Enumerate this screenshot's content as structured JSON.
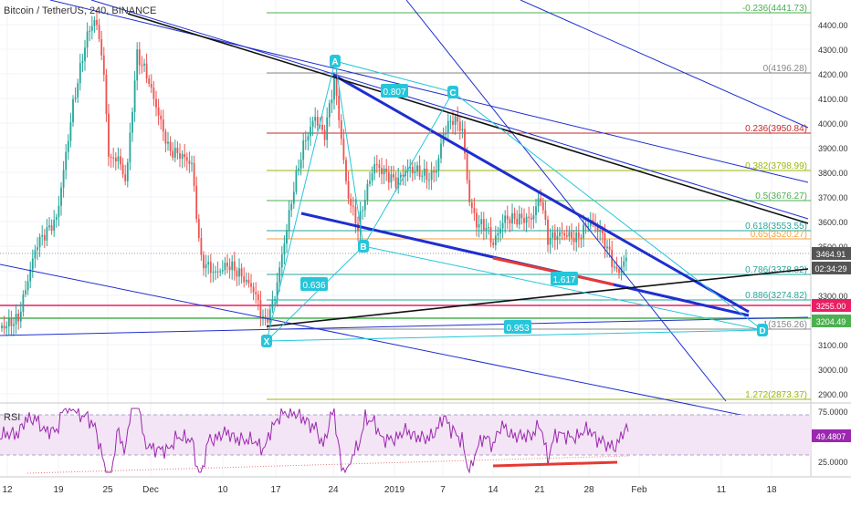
{
  "header": {
    "title": "Bitcoin / TetherUS, 240, BINANCE"
  },
  "rsi": {
    "label": "RSI",
    "value": "49.4807"
  },
  "colors": {
    "up": "#26a69a",
    "down": "#ef5350",
    "wick": "#888888",
    "fibGreen": "#4caf50",
    "fibRed": "#c62828",
    "fibOlive": "#9bb70a",
    "fibTeal": "#26a69a",
    "fibGray": "#888888",
    "fibOrange": "#f7a23b",
    "harmonic": "#26c6da",
    "trend": "#1f2ed0",
    "black": "#111111",
    "rsiLine": "#9c27b0",
    "rsiBand": "#f3e5f5",
    "pink": "#e91e63"
  },
  "chart_data": {
    "type": "candlestick",
    "symbol": "Bitcoin / TetherUS",
    "interval": "240",
    "exchange": "BINANCE",
    "y_ticks": [
      "4400.00",
      "4300.00",
      "4200.00",
      "4100.00",
      "4000.00",
      "3900.00",
      "3800.00",
      "3700.00",
      "3600.00",
      "3500.00",
      "3400.00",
      "3300.00",
      "3200.00",
      "3100.00",
      "3000.00",
      "2900.00"
    ],
    "x_ticks": [
      "12",
      "19",
      "25",
      "Dec",
      "10",
      "17",
      "24",
      "2019",
      "7",
      "14",
      "21",
      "28",
      "Feb",
      "11",
      "18"
    ],
    "price_badges": [
      {
        "label": "3464.91",
        "color": "#555555"
      },
      {
        "label": "02:34:29",
        "color": "#555555"
      },
      {
        "label": "3255.00",
        "color": "#e91e63"
      },
      {
        "label": "3204.49",
        "color": "#4caf50"
      }
    ],
    "fib_levels": [
      {
        "label": "-0.236(4441.73)",
        "color": "#4caf50"
      },
      {
        "label": "0(4196.28)",
        "color": "#888888"
      },
      {
        "label": "0.236(3950.84)",
        "color": "#c62828"
      },
      {
        "label": "0.382(3798.99)",
        "color": "#9bb70a"
      },
      {
        "label": "0.5(3676.27)",
        "color": "#4caf50"
      },
      {
        "label": "0.618(3553.55)",
        "color": "#26a69a"
      },
      {
        "label": "0.65(3520.27)",
        "color": "#f7a23b"
      },
      {
        "label": "0.786(3378.82)",
        "color": "#26a69a"
      },
      {
        "label": "0.886(3274.82)",
        "color": "#26a69a"
      },
      {
        "label": "1(3156.26)",
        "color": "#888888"
      },
      {
        "label": "1.272(2873.37)",
        "color": "#9bb70a"
      }
    ],
    "pattern_points": [
      "X",
      "A",
      "B",
      "C",
      "D"
    ],
    "pattern_ratios": [
      "0.807",
      "0.636",
      "1.617",
      "0.953"
    ],
    "rsi_ticks": [
      "75.0000",
      "25.0000"
    ],
    "rsi_value": "49.4807"
  }
}
